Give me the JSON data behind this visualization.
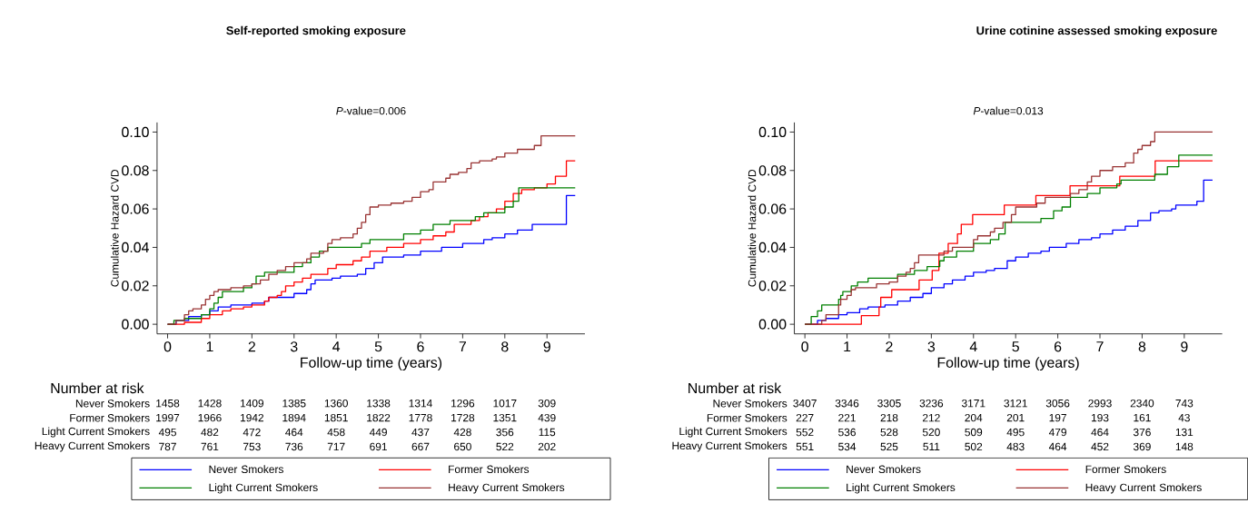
{
  "chart_data": [
    {
      "type": "step",
      "title": "Self-reported smoking exposure",
      "subtitle": "*P*-value=0.006",
      "xlabel": "Follow-up time (years)",
      "ylabel": "Cumulative Hazard CVD",
      "xlim": [
        -0.25,
        9.9
      ],
      "ylim": [
        -0.005,
        0.105
      ],
      "xticks": [
        0,
        1,
        2,
        3,
        4,
        5,
        6,
        7,
        8,
        9
      ],
      "yticks": [
        {
          "value": 0,
          "label": "0.00"
        },
        {
          "value": 0.02,
          "label": "0.02"
        },
        {
          "value": 0.04,
          "label": "0.04"
        },
        {
          "value": 0.06,
          "label": "0.06"
        },
        {
          "value": 0.08,
          "label": "0.08"
        },
        {
          "value": 0.1,
          "label": "0.10"
        }
      ],
      "legend": "bottom",
      "grid": false,
      "marker": "none",
      "line_style": "solid",
      "series": [
        {
          "name": "Never Smokers",
          "color": "#0000ff",
          "x": [
            0,
            0.2,
            0.5,
            0.8,
            1.0,
            1.2,
            1.5,
            2.0,
            2.3,
            2.4,
            3.0,
            3.3,
            3.4,
            3.5,
            3.9,
            4.1,
            4.5,
            4.7,
            4.9,
            5.1,
            5.6,
            6.0,
            6.5,
            7.0,
            7.5,
            7.7,
            8.0,
            8.3,
            8.65,
            9.46,
            9.67
          ],
          "values": [
            0,
            0.002,
            0.004,
            0.005,
            0.007,
            0.009,
            0.01,
            0.011,
            0.012,
            0.014,
            0.016,
            0.018,
            0.021,
            0.023,
            0.024,
            0.025,
            0.026,
            0.029,
            0.032,
            0.035,
            0.036,
            0.038,
            0.04,
            0.042,
            0.044,
            0.045,
            0.047,
            0.049,
            0.052,
            0.067,
            0.067
          ]
        },
        {
          "name": "Former Smokers",
          "color": "#ff0000",
          "x": [
            0,
            0.4,
            0.8,
            1.0,
            1.3,
            1.5,
            1.8,
            2.0,
            2.3,
            2.4,
            2.6,
            2.7,
            2.8,
            3.0,
            3.2,
            3.4,
            3.8,
            4.0,
            4.4,
            4.6,
            4.8,
            5.2,
            5.6,
            6.0,
            6.3,
            6.6,
            6.8,
            7.2,
            7.4,
            7.6,
            7.8,
            8.0,
            8.2,
            8.4,
            8.7,
            9.0,
            9.2,
            9.46,
            9.67
          ],
          "values": [
            0,
            0.001,
            0.003,
            0.005,
            0.007,
            0.008,
            0.009,
            0.01,
            0.012,
            0.014,
            0.015,
            0.017,
            0.02,
            0.022,
            0.024,
            0.026,
            0.029,
            0.031,
            0.033,
            0.035,
            0.038,
            0.04,
            0.042,
            0.044,
            0.046,
            0.048,
            0.052,
            0.054,
            0.056,
            0.058,
            0.06,
            0.064,
            0.068,
            0.07,
            0.071,
            0.073,
            0.077,
            0.085,
            0.085
          ]
        },
        {
          "name": "Light Current Smokers",
          "color": "#008000",
          "x": [
            0,
            0.15,
            0.4,
            0.8,
            1.0,
            1.1,
            1.2,
            1.3,
            1.8,
            2.0,
            2.1,
            2.3,
            3.0,
            3.2,
            3.4,
            3.6,
            3.8,
            4.6,
            4.8,
            5.6,
            6.0,
            6.3,
            6.7,
            7.3,
            7.5,
            8.0,
            8.2,
            8.33,
            9.67
          ],
          "values": [
            0,
            0.002,
            0.003,
            0.005,
            0.008,
            0.011,
            0.014,
            0.017,
            0.019,
            0.021,
            0.025,
            0.027,
            0.03,
            0.032,
            0.035,
            0.038,
            0.04,
            0.042,
            0.044,
            0.047,
            0.049,
            0.052,
            0.054,
            0.056,
            0.058,
            0.061,
            0.064,
            0.071,
            0.071
          ]
        },
        {
          "name": "Heavy Current Smokers",
          "color": "#993333",
          "x": [
            0,
            0.2,
            0.4,
            0.5,
            0.6,
            0.8,
            0.9,
            1.0,
            1.1,
            1.2,
            1.5,
            1.8,
            2.0,
            2.2,
            2.4,
            2.6,
            2.8,
            3.0,
            3.3,
            3.4,
            3.7,
            3.8,
            3.9,
            4.1,
            4.4,
            4.5,
            4.6,
            4.7,
            4.8,
            5.0,
            5.3,
            5.6,
            5.8,
            6.0,
            6.2,
            6.3,
            6.6,
            6.7,
            6.9,
            7.1,
            7.2,
            7.4,
            7.7,
            7.8,
            8.0,
            8.3,
            8.7,
            8.86,
            9.67
          ],
          "values": [
            0,
            0.002,
            0.005,
            0.007,
            0.008,
            0.01,
            0.013,
            0.015,
            0.017,
            0.018,
            0.019,
            0.02,
            0.021,
            0.023,
            0.026,
            0.028,
            0.03,
            0.032,
            0.034,
            0.037,
            0.038,
            0.042,
            0.044,
            0.045,
            0.047,
            0.05,
            0.053,
            0.057,
            0.061,
            0.062,
            0.063,
            0.064,
            0.066,
            0.069,
            0.07,
            0.074,
            0.076,
            0.078,
            0.079,
            0.081,
            0.084,
            0.085,
            0.086,
            0.087,
            0.089,
            0.091,
            0.093,
            0.098,
            0.098
          ]
        }
      ],
      "annotations": [
        "Number at risk",
        "Never Smokers",
        "1458",
        "1428",
        "1409",
        "1385",
        "1360",
        "1338",
        "1314",
        "1296",
        "1017",
        "309",
        "Former Smokers",
        "1997",
        "1966",
        "1942",
        "1894",
        "1851",
        "1822",
        "1778",
        "1728",
        "1351",
        "439",
        "Light Current Smokers",
        "495",
        "482",
        "472",
        "464",
        "458",
        "449",
        "437",
        "428",
        "356",
        "115",
        "Heavy Current Smokers",
        "787",
        "761",
        "753",
        "736",
        "717",
        "691",
        "667",
        "650",
        "522",
        "202"
      ]
    },
    {
      "type": "step",
      "title": "Urine cotinine assessed smoking exposure",
      "subtitle": "*P*-value=0.013",
      "xlabel": "Follow-up time (years)",
      "ylabel": "Cumulative Hazard CVD",
      "xlim": [
        -0.25,
        9.9
      ],
      "ylim": [
        -0.005,
        0.105
      ],
      "xticks": [
        0,
        1,
        2,
        3,
        4,
        5,
        6,
        7,
        8,
        9
      ],
      "yticks": [
        {
          "value": 0,
          "label": "0.00"
        },
        {
          "value": 0.02,
          "label": "0.02"
        },
        {
          "value": 0.04,
          "label": "0.04"
        },
        {
          "value": 0.06,
          "label": "0.06"
        },
        {
          "value": 0.08,
          "label": "0.08"
        },
        {
          "value": 0.1,
          "label": "0.10"
        }
      ],
      "legend": "bottom",
      "grid": false,
      "marker": "none",
      "line_style": "solid",
      "series": [
        {
          "name": "Never Smokers",
          "color": "#0000ff",
          "x": [
            0,
            0.3,
            0.5,
            0.8,
            1.0,
            1.3,
            1.5,
            1.9,
            2.2,
            2.5,
            2.8,
            3.0,
            3.3,
            3.5,
            3.8,
            4.0,
            4.3,
            4.5,
            4.8,
            5.0,
            5.3,
            5.6,
            5.8,
            6.2,
            6.5,
            6.8,
            7.0,
            7.3,
            7.6,
            7.9,
            8.2,
            8.4,
            8.7,
            8.8,
            9.3,
            9.46,
            9.67
          ],
          "values": [
            0,
            0.002,
            0.003,
            0.005,
            0.006,
            0.008,
            0.009,
            0.01,
            0.012,
            0.014,
            0.016,
            0.019,
            0.021,
            0.023,
            0.025,
            0.027,
            0.028,
            0.029,
            0.033,
            0.035,
            0.037,
            0.038,
            0.04,
            0.042,
            0.044,
            0.045,
            0.047,
            0.049,
            0.051,
            0.054,
            0.058,
            0.059,
            0.06,
            0.062,
            0.064,
            0.075,
            0.075
          ]
        },
        {
          "name": "Former Smokers",
          "color": "#ff0000",
          "x": [
            0,
            1.34,
            1.76,
            1.8,
            2.06,
            2.71,
            3.02,
            3.18,
            3.4,
            3.62,
            3.71,
            3.98,
            4.73,
            5.48,
            6.29,
            7.47,
            8.31,
            9.67
          ],
          "values": [
            0,
            0.0045,
            0.009,
            0.014,
            0.018,
            0.023,
            0.028,
            0.037,
            0.042,
            0.047,
            0.052,
            0.057,
            0.062,
            0.067,
            0.072,
            0.077,
            0.085,
            0.085
          ]
        },
        {
          "name": "Light Current Smokers",
          "color": "#008000",
          "x": [
            0,
            0.15,
            0.3,
            0.4,
            0.8,
            0.85,
            0.9,
            1.1,
            1.25,
            1.5,
            2.2,
            2.6,
            2.9,
            3.2,
            3.3,
            3.6,
            4.0,
            4.4,
            4.6,
            4.75,
            5.6,
            5.9,
            6.1,
            6.3,
            6.7,
            7.0,
            7.4,
            7.5,
            8.3,
            8.6,
            8.87,
            9.67
          ],
          "values": [
            0,
            0.004,
            0.007,
            0.01,
            0.013,
            0.015,
            0.017,
            0.02,
            0.022,
            0.024,
            0.026,
            0.028,
            0.03,
            0.033,
            0.035,
            0.038,
            0.042,
            0.044,
            0.047,
            0.053,
            0.055,
            0.059,
            0.061,
            0.066,
            0.068,
            0.071,
            0.073,
            0.075,
            0.078,
            0.082,
            0.088,
            0.088
          ]
        },
        {
          "name": "Heavy Current Smokers",
          "color": "#993333",
          "x": [
            0,
            0.4,
            0.5,
            0.8,
            0.85,
            1.0,
            1.1,
            1.2,
            1.7,
            2.0,
            2.2,
            2.4,
            2.5,
            2.6,
            2.7,
            3.3,
            3.5,
            4.0,
            4.1,
            4.4,
            4.5,
            4.7,
            4.9,
            5.0,
            5.5,
            5.7,
            6.3,
            6.5,
            6.7,
            6.8,
            7.0,
            7.3,
            7.6,
            7.8,
            7.9,
            8.0,
            8.2,
            8.3,
            9.67
          ],
          "values": [
            0,
            0.002,
            0.005,
            0.01,
            0.013,
            0.015,
            0.018,
            0.019,
            0.021,
            0.022,
            0.025,
            0.027,
            0.029,
            0.032,
            0.036,
            0.038,
            0.04,
            0.044,
            0.046,
            0.048,
            0.05,
            0.053,
            0.057,
            0.061,
            0.063,
            0.066,
            0.068,
            0.07,
            0.074,
            0.077,
            0.08,
            0.082,
            0.084,
            0.089,
            0.091,
            0.093,
            0.095,
            0.1,
            0.1
          ]
        }
      ],
      "annotations": [
        "Number at risk",
        "Never Smokers",
        "3407",
        "3346",
        "3305",
        "3236",
        "3171",
        "3121",
        "3056",
        "2993",
        "2340",
        "743",
        "Former Smokers",
        "227",
        "221",
        "218",
        "212",
        "204",
        "201",
        "197",
        "193",
        "161",
        "43",
        "Light Current Smokers",
        "552",
        "536",
        "528",
        "520",
        "509",
        "495",
        "479",
        "464",
        "376",
        "131",
        "Heavy Current Smokers",
        "551",
        "534",
        "525",
        "511",
        "502",
        "483",
        "464",
        "452",
        "369",
        "148"
      ]
    }
  ]
}
